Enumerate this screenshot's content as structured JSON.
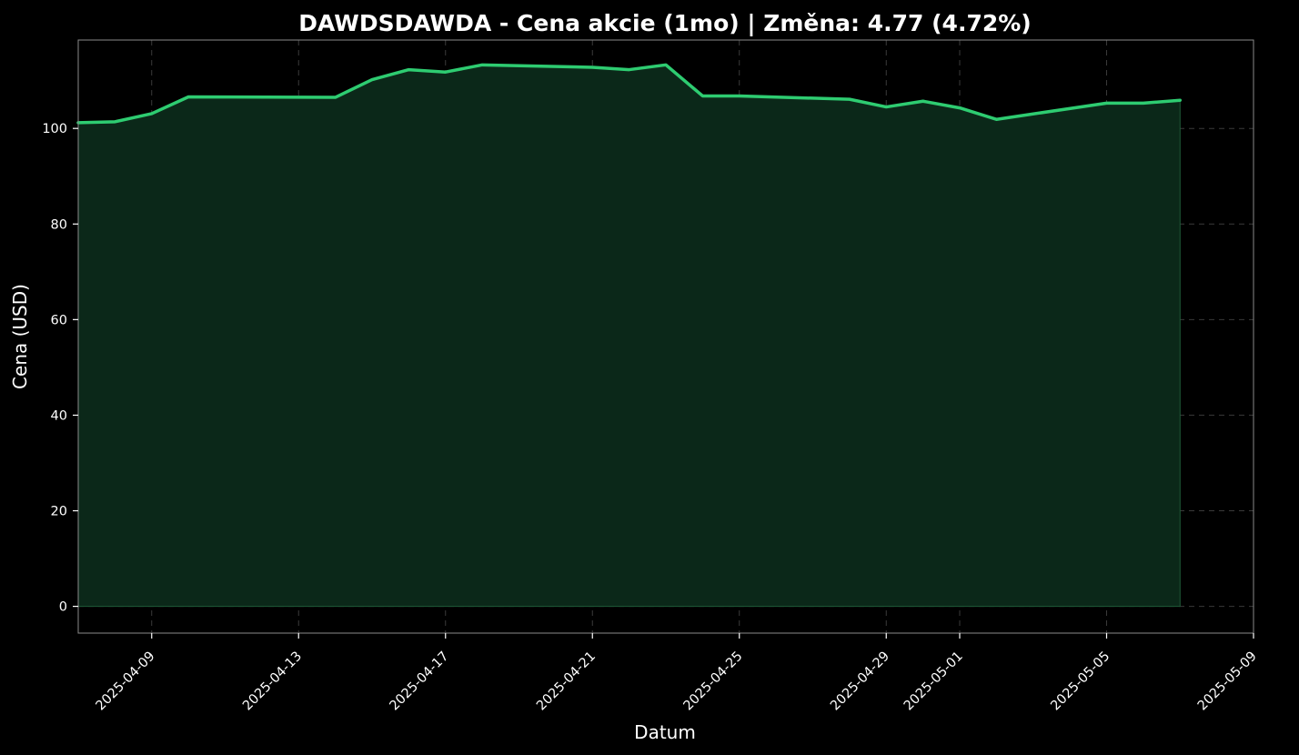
{
  "chart_data": {
    "type": "area",
    "title": "DAWDSDAWDA - Cena akcie (1mo) | Změna: 4.77 (4.72%)",
    "xlabel": "Datum",
    "ylabel": "Cena (USD)",
    "xlim": [
      "2025-04-07",
      "2025-05-09"
    ],
    "ylim": [
      -5.6,
      118.5
    ],
    "grid": true,
    "colors": {
      "background": "#000000",
      "line": "#2ecc71",
      "fill": "#0b2819",
      "grid": "#3a3a3a",
      "spine": "#8a8a8a",
      "text": "#ffffff"
    },
    "x_ticks": [
      "2025-04-09",
      "2025-04-13",
      "2025-04-17",
      "2025-04-21",
      "2025-04-25",
      "2025-04-29",
      "2025-05-01",
      "2025-05-05",
      "2025-05-09"
    ],
    "y_ticks": [
      0,
      20,
      40,
      60,
      80,
      100
    ],
    "series": [
      {
        "x": [
          "2025-04-07",
          "2025-04-08",
          "2025-04-09",
          "2025-04-10",
          "2025-04-14",
          "2025-04-15",
          "2025-04-16",
          "2025-04-17",
          "2025-04-18",
          "2025-04-21",
          "2025-04-22",
          "2025-04-23",
          "2025-04-24",
          "2025-04-25",
          "2025-04-28",
          "2025-04-29",
          "2025-04-30",
          "2025-05-01",
          "2025-05-02",
          "2025-05-05",
          "2025-05-06",
          "2025-05-07"
        ],
        "values": [
          101.2,
          101.4,
          103.1,
          106.6,
          106.5,
          110.2,
          112.3,
          111.8,
          113.3,
          112.8,
          112.3,
          113.3,
          106.8,
          106.8,
          106.1,
          104.5,
          105.7,
          104.3,
          101.9,
          105.3,
          105.3,
          105.9
        ]
      }
    ]
  }
}
